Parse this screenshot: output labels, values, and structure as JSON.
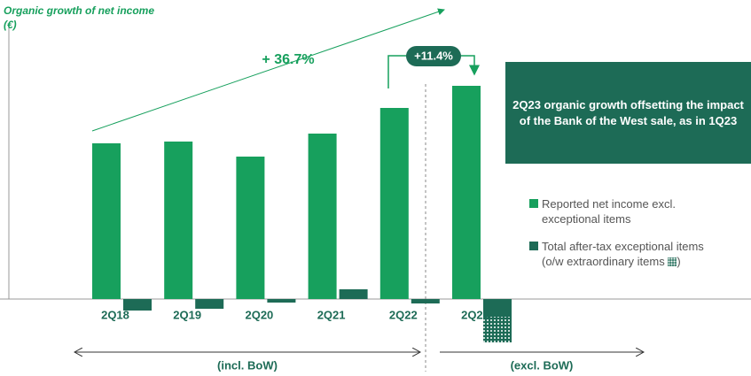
{
  "chart_data": {
    "type": "bar",
    "title": "Organic growth of net income",
    "unit_label": "(€)",
    "categories": [
      "2Q18",
      "2Q19",
      "2Q20",
      "2Q21",
      "2Q22",
      "2Q23"
    ],
    "series": [
      {
        "name": "Reported net income excl. exceptional items",
        "color": "#17a05d",
        "values": [
          176,
          178,
          161,
          187,
          216,
          241
        ]
      },
      {
        "name": "Total after-tax exceptional items",
        "color": "#1d6b56",
        "values": [
          -13,
          -11,
          -4,
          11,
          -5,
          -20
        ]
      },
      {
        "name": "o/w extraordinary items",
        "color": "#1d6b56",
        "pattern": "dotted",
        "values": [
          null,
          null,
          null,
          null,
          null,
          -29
        ]
      }
    ],
    "legend_note": "(o/w extraordinary items",
    "legend_note_end": ")",
    "ylim": [
      -60,
      250
    ],
    "annotations": {
      "growth_total": "+ 36.7%",
      "growth_quarter": "+11.4%",
      "incl": "(incl. BoW)",
      "excl": "(excl. BoW)"
    },
    "box_text": "2Q23 organic growth offsetting the impact of the Bank of the West sale, as in 1Q23"
  }
}
